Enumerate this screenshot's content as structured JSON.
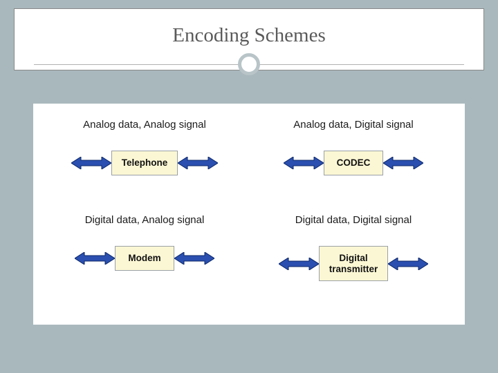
{
  "title": "Encoding Schemes",
  "layout": {
    "page_bg": "#a9b8bd",
    "content_bg": "#ffffff",
    "title_color": "#5a5a5a",
    "title_font": "Georgia, serif",
    "title_fontsize": 29,
    "circle_border_color": "#b8c4c8",
    "circle_border_width": 5
  },
  "arrow": {
    "fill": "#2a4fb0",
    "stroke": "#0c2766",
    "length": 58,
    "height": 18,
    "head_width": 14,
    "shaft_half": 4
  },
  "device_box": {
    "bg": "#fbf7d4",
    "border": "#9aa0a6",
    "font_weight": 700,
    "fontsize": 13.5,
    "text_color": "#111111"
  },
  "cells": [
    {
      "title": "Analog data, Analog signal",
      "device": "Telephone"
    },
    {
      "title": "Analog data, Digital signal",
      "device": "CODEC"
    },
    {
      "title": "Digital data, Analog signal",
      "device": "Modem"
    },
    {
      "title": "Digital data, Digital signal",
      "device": "Digital\ntransmitter"
    }
  ]
}
